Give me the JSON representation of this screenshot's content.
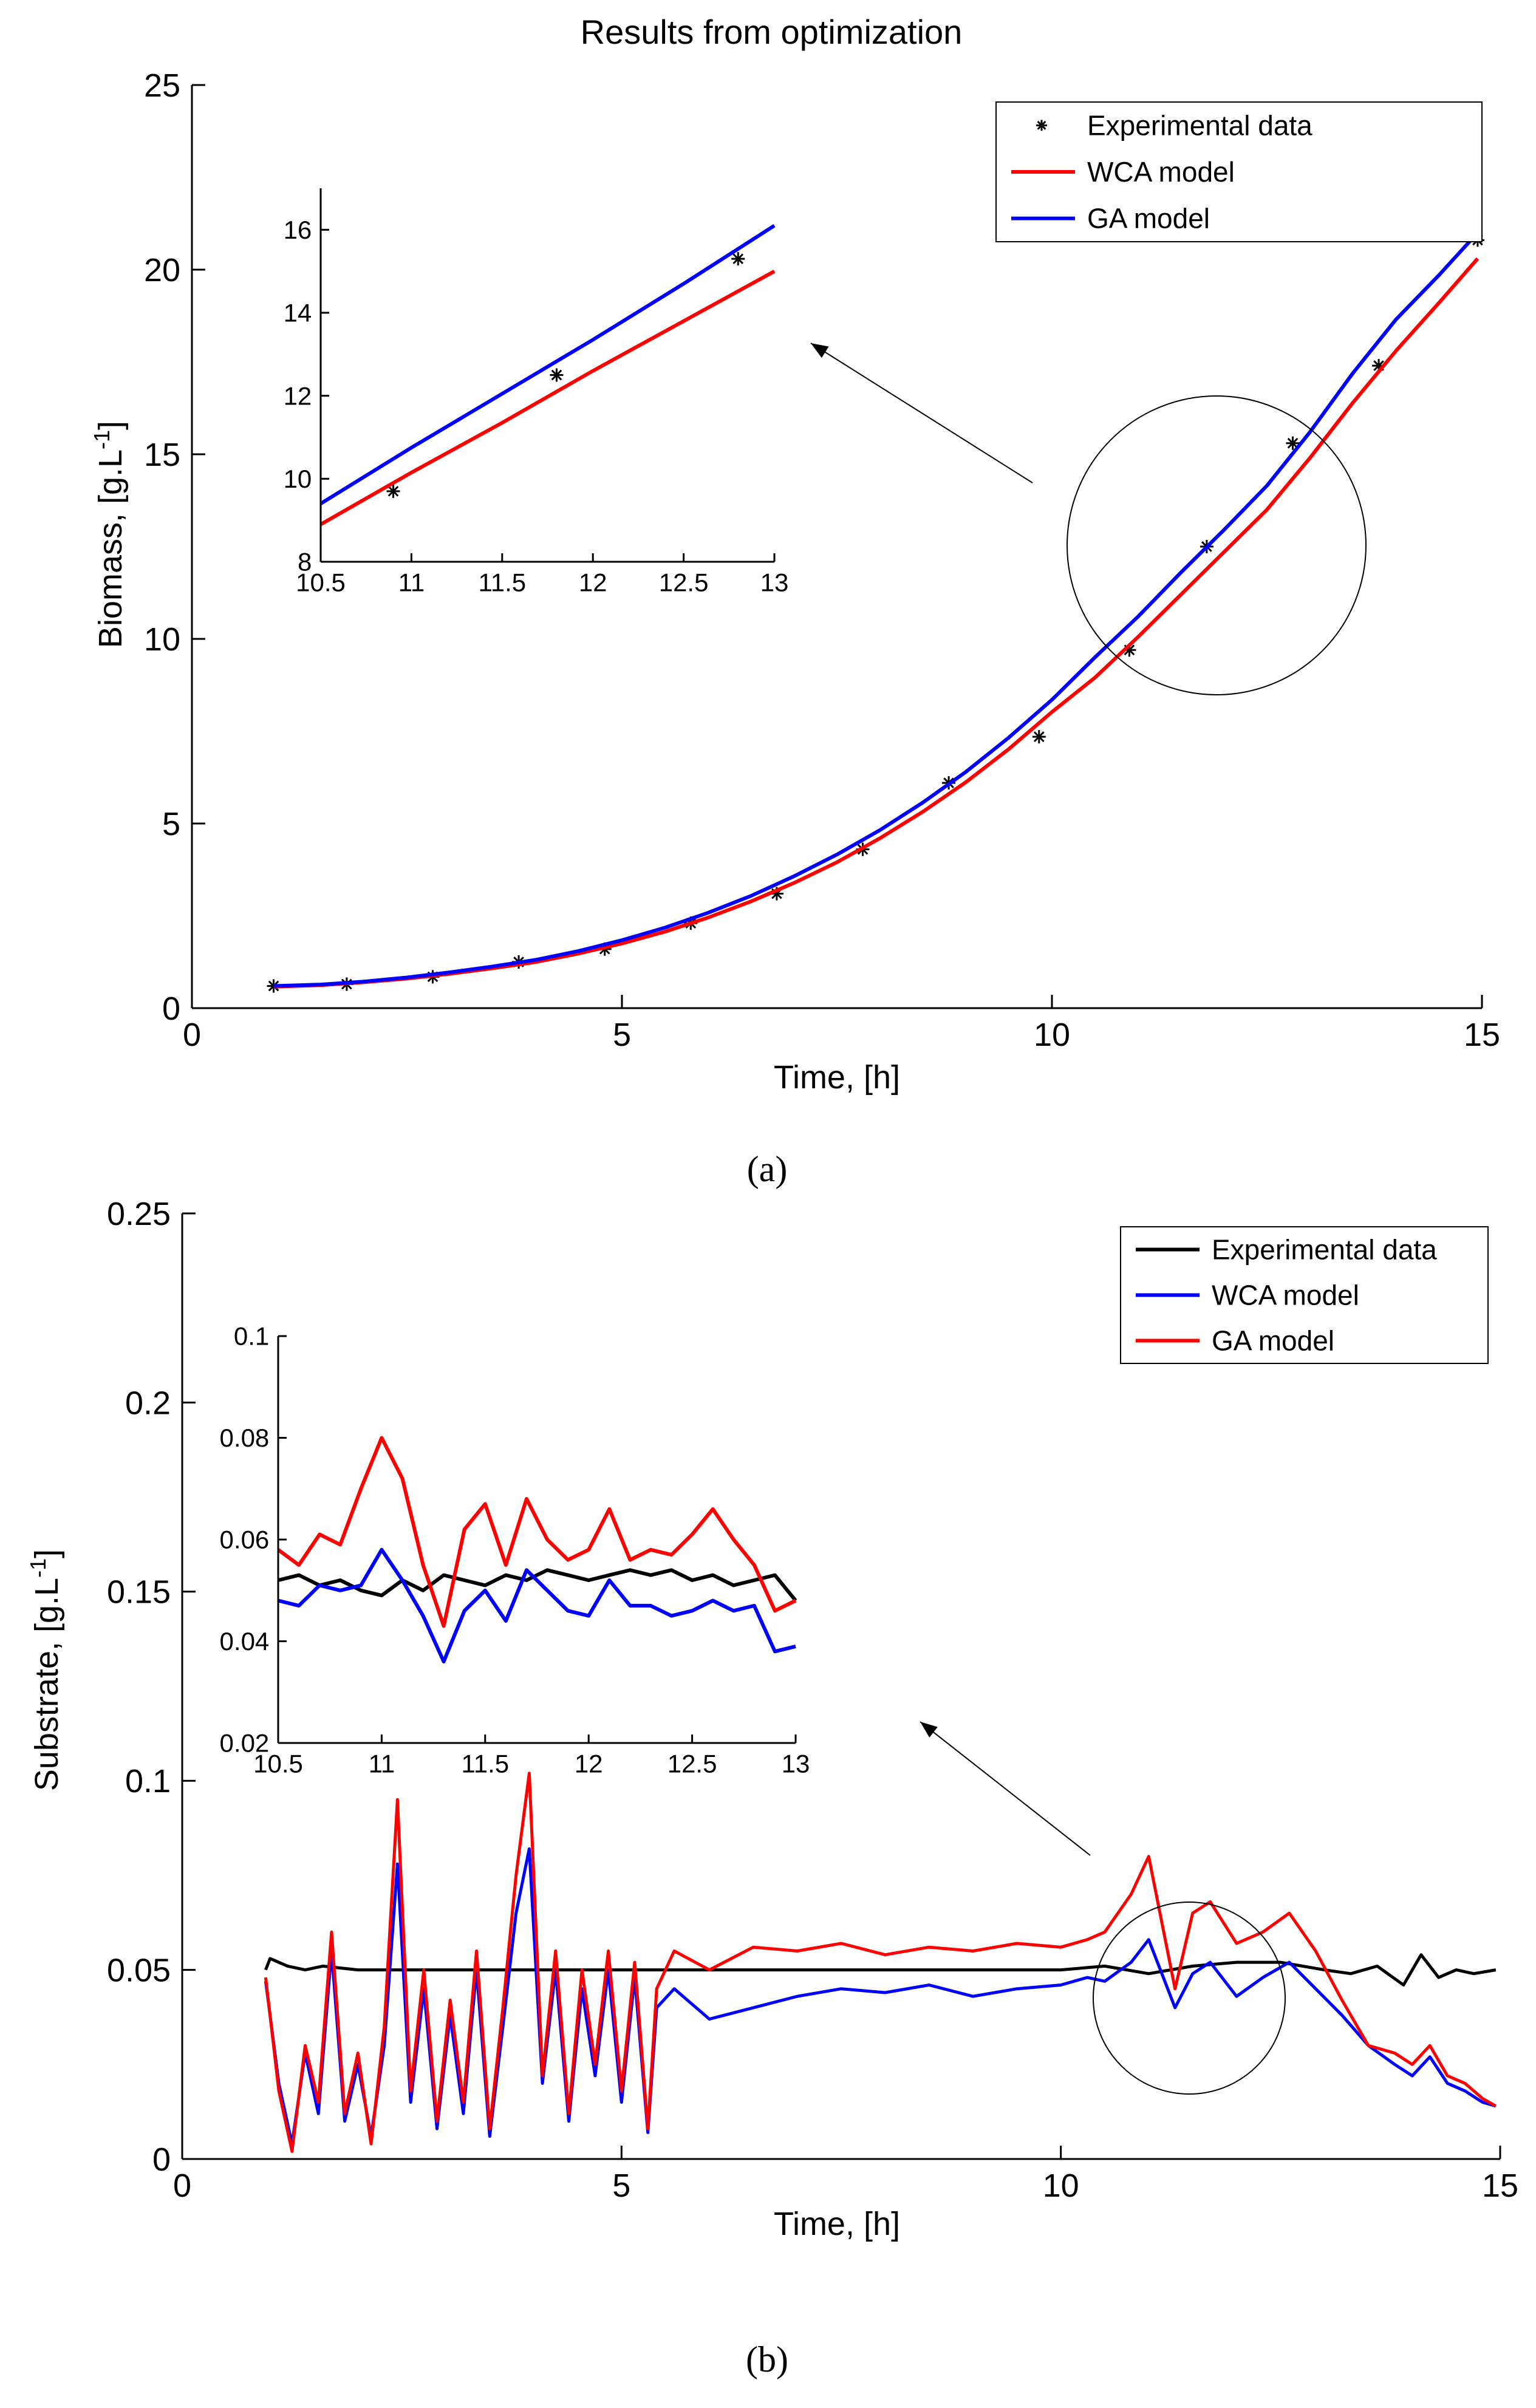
{
  "chart_data": [
    {
      "id": "a",
      "type": "line",
      "title": "Results from optimization",
      "panel_label": "(a)",
      "xlabel": "Time, [h]",
      "ylabel": "Biomass, [g.L-1]",
      "ylabel_base": "Biomass, [g.L",
      "ylabel_exp": "-1",
      "ylabel_end": "]",
      "xlim": [
        0,
        15
      ],
      "ylim": [
        0,
        25
      ],
      "xticks": [
        0,
        5,
        10,
        15
      ],
      "yticks": [
        0,
        5,
        10,
        15,
        20,
        25
      ],
      "legend": [
        "Experimental data",
        "WCA model",
        "GA model"
      ],
      "legend_position": "top-right",
      "series": [
        {
          "name": "Experimental data",
          "style": "markers",
          "color": "#000000",
          "x": [
            0.95,
            1.8,
            2.8,
            3.8,
            4.8,
            5.8,
            6.8,
            7.8,
            8.8,
            9.85,
            10.9,
            11.8,
            12.8,
            13.8,
            14.95
          ],
          "y": [
            0.6,
            0.65,
            0.85,
            1.25,
            1.6,
            2.3,
            3.1,
            4.3,
            6.1,
            7.35,
            9.7,
            12.5,
            15.3,
            17.4,
            20.8
          ]
        },
        {
          "name": "WCA model",
          "style": "line",
          "color": "#ff0000",
          "x": [
            0.95,
            1.5,
            2,
            2.5,
            3,
            3.5,
            4,
            4.5,
            5,
            5.5,
            6,
            6.5,
            7,
            7.5,
            8,
            8.5,
            9,
            9.5,
            10,
            10.5,
            11,
            11.5,
            12,
            12.5,
            13,
            13.5,
            14,
            14.5,
            14.95
          ],
          "y": [
            0.58,
            0.62,
            0.7,
            0.8,
            0.93,
            1.08,
            1.25,
            1.48,
            1.75,
            2.07,
            2.45,
            2.89,
            3.39,
            3.95,
            4.6,
            5.32,
            6.12,
            7.02,
            8.02,
            8.95,
            10.05,
            11.2,
            12.35,
            13.5,
            14.9,
            16.4,
            17.8,
            19.1,
            20.3
          ]
        },
        {
          "name": "GA model",
          "style": "line",
          "color": "#0000ff",
          "x": [
            0.95,
            1.5,
            2,
            2.5,
            3,
            3.5,
            4,
            4.5,
            5,
            5.5,
            6,
            6.5,
            7,
            7.5,
            8,
            8.5,
            9,
            9.5,
            10,
            10.5,
            11,
            11.5,
            12,
            12.5,
            13,
            13.5,
            14,
            14.5,
            14.95
          ],
          "y": [
            0.6,
            0.64,
            0.72,
            0.83,
            0.97,
            1.13,
            1.31,
            1.55,
            1.84,
            2.18,
            2.58,
            3.04,
            3.57,
            4.16,
            4.82,
            5.57,
            6.4,
            7.33,
            8.35,
            9.5,
            10.6,
            11.8,
            12.95,
            14.15,
            15.6,
            17.2,
            18.65,
            19.85,
            21.0
          ]
        }
      ],
      "annotation": "zoom circle around t = 11.5–12.5 h with arrow to inset"
    },
    {
      "id": "a_inset",
      "type": "line",
      "title": "",
      "xlim": [
        10.5,
        13
      ],
      "ylim": [
        8,
        17
      ],
      "xticks": [
        10.5,
        11,
        11.5,
        12,
        12.5,
        13
      ],
      "yticks": [
        8,
        10,
        12,
        14,
        16
      ],
      "series": [
        {
          "name": "Experimental data",
          "style": "markers",
          "color": "#000000",
          "x": [
            10.9,
            11.8,
            12.8
          ],
          "y": [
            9.7,
            12.5,
            15.3
          ]
        },
        {
          "name": "WCA model",
          "style": "line",
          "color": "#ff0000",
          "x": [
            10.5,
            11,
            11.5,
            12,
            12.5,
            13
          ],
          "y": [
            8.9,
            10.15,
            11.35,
            12.6,
            13.8,
            15.0
          ]
        },
        {
          "name": "GA model",
          "style": "line",
          "color": "#0000ff",
          "x": [
            10.5,
            11,
            11.5,
            12,
            12.5,
            13
          ],
          "y": [
            9.4,
            10.75,
            12.05,
            13.35,
            14.7,
            16.1
          ]
        }
      ]
    },
    {
      "id": "b",
      "type": "line",
      "title": "",
      "panel_label": "(b)",
      "xlabel": "Time, [h]",
      "ylabel": "Substrate, [g.L-1]",
      "ylabel_base": "Substrate, [g.L",
      "ylabel_exp": "-1",
      "ylabel_end": "]",
      "xlim": [
        0,
        15
      ],
      "ylim": [
        0,
        0.25
      ],
      "xticks": [
        0,
        5,
        10,
        15
      ],
      "yticks": [
        0,
        0.05,
        0.1,
        0.15,
        0.2,
        0.25
      ],
      "ytick_labels": [
        "0",
        "0.05",
        "0.1",
        "0.15",
        "0.2",
        "0.25"
      ],
      "legend": [
        "Experimental data",
        "WCA model",
        "GA model"
      ],
      "legend_position": "top-right",
      "series": [
        {
          "name": "Experimental data",
          "style": "line",
          "color": "#000000",
          "x": [
            0.95,
            1.0,
            1.2,
            1.4,
            1.6,
            2.0,
            3.0,
            4.0,
            5.0,
            6.0,
            7.0,
            8.0,
            9.0,
            10.0,
            10.5,
            11.0,
            11.5,
            12.0,
            12.5,
            13.0,
            13.3,
            13.6,
            13.9,
            14.1,
            14.3,
            14.5,
            14.7,
            14.95
          ],
          "y": [
            0.05,
            0.053,
            0.051,
            0.05,
            0.051,
            0.05,
            0.05,
            0.05,
            0.05,
            0.05,
            0.05,
            0.05,
            0.05,
            0.05,
            0.051,
            0.049,
            0.051,
            0.052,
            0.052,
            0.05,
            0.049,
            0.051,
            0.046,
            0.054,
            0.048,
            0.05,
            0.049,
            0.05
          ]
        },
        {
          "name": "WCA model",
          "style": "line",
          "color": "#0000ff",
          "x": [
            0.95,
            1.1,
            1.25,
            1.4,
            1.55,
            1.7,
            1.85,
            2.0,
            2.15,
            2.3,
            2.45,
            2.6,
            2.75,
            2.9,
            3.05,
            3.2,
            3.35,
            3.5,
            3.65,
            3.8,
            3.95,
            4.1,
            4.25,
            4.4,
            4.55,
            4.7,
            4.85,
            5.0,
            5.15,
            5.3,
            5.4,
            5.6,
            6.0,
            6.5,
            7.0,
            7.5,
            8.0,
            8.5,
            9.0,
            9.5,
            10.0,
            10.3,
            10.5,
            10.8,
            11.0,
            11.3,
            11.5,
            11.7,
            12.0,
            12.3,
            12.6,
            12.9,
            13.2,
            13.5,
            13.8,
            14.0,
            14.2,
            14.4,
            14.6,
            14.8,
            14.95
          ],
          "y": [
            0.047,
            0.02,
            0.004,
            0.028,
            0.012,
            0.055,
            0.01,
            0.025,
            0.006,
            0.03,
            0.078,
            0.015,
            0.045,
            0.008,
            0.038,
            0.012,
            0.05,
            0.006,
            0.035,
            0.065,
            0.082,
            0.02,
            0.05,
            0.01,
            0.045,
            0.022,
            0.05,
            0.015,
            0.048,
            0.007,
            0.04,
            0.045,
            0.037,
            0.04,
            0.043,
            0.045,
            0.044,
            0.046,
            0.043,
            0.045,
            0.046,
            0.048,
            0.047,
            0.052,
            0.058,
            0.04,
            0.049,
            0.052,
            0.043,
            0.048,
            0.052,
            0.045,
            0.038,
            0.03,
            0.025,
            0.022,
            0.027,
            0.02,
            0.018,
            0.015,
            0.014
          ]
        },
        {
          "name": "GA model",
          "style": "line",
          "color": "#ff0000",
          "x": [
            0.95,
            1.1,
            1.25,
            1.4,
            1.55,
            1.7,
            1.85,
            2.0,
            2.15,
            2.3,
            2.45,
            2.6,
            2.75,
            2.9,
            3.05,
            3.2,
            3.35,
            3.5,
            3.65,
            3.8,
            3.95,
            4.1,
            4.25,
            4.4,
            4.55,
            4.7,
            4.85,
            5.0,
            5.15,
            5.3,
            5.4,
            5.6,
            6.0,
            6.5,
            7.0,
            7.5,
            8.0,
            8.5,
            9.0,
            9.5,
            10.0,
            10.3,
            10.5,
            10.8,
            11.0,
            11.3,
            11.5,
            11.7,
            12.0,
            12.3,
            12.6,
            12.9,
            13.2,
            13.5,
            13.8,
            14.0,
            14.2,
            14.4,
            14.6,
            14.8,
            14.95
          ],
          "y": [
            0.048,
            0.018,
            0.002,
            0.03,
            0.015,
            0.06,
            0.012,
            0.028,
            0.004,
            0.035,
            0.095,
            0.018,
            0.05,
            0.01,
            0.042,
            0.015,
            0.055,
            0.008,
            0.04,
            0.075,
            0.102,
            0.022,
            0.055,
            0.012,
            0.05,
            0.025,
            0.055,
            0.018,
            0.052,
            0.008,
            0.045,
            0.055,
            0.05,
            0.056,
            0.055,
            0.057,
            0.054,
            0.056,
            0.055,
            0.057,
            0.056,
            0.058,
            0.06,
            0.07,
            0.08,
            0.045,
            0.065,
            0.068,
            0.057,
            0.06,
            0.065,
            0.055,
            0.042,
            0.03,
            0.028,
            0.025,
            0.03,
            0.022,
            0.02,
            0.016,
            0.014
          ]
        }
      ],
      "annotation": "zoom circle around t = 11.5 h with arrow to inset"
    },
    {
      "id": "b_inset",
      "type": "line",
      "title": "",
      "xlim": [
        10.5,
        13
      ],
      "ylim": [
        0.02,
        0.1
      ],
      "xticks": [
        10.5,
        11,
        11.5,
        12,
        12.5,
        13
      ],
      "yticks": [
        0.02,
        0.04,
        0.06,
        0.08,
        0.1
      ],
      "ytick_labels": [
        "0.02",
        "0.04",
        "0.06",
        "0.08",
        "0.1"
      ],
      "series": [
        {
          "name": "Experimental data",
          "style": "line",
          "color": "#000000",
          "x": [
            10.5,
            10.6,
            10.7,
            10.8,
            10.9,
            11.0,
            11.1,
            11.2,
            11.3,
            11.4,
            11.5,
            11.6,
            11.7,
            11.8,
            11.9,
            12.0,
            12.1,
            12.2,
            12.3,
            12.4,
            12.5,
            12.6,
            12.7,
            12.8,
            12.9,
            13.0
          ],
          "y": [
            0.052,
            0.053,
            0.051,
            0.052,
            0.05,
            0.049,
            0.052,
            0.05,
            0.053,
            0.052,
            0.051,
            0.053,
            0.052,
            0.054,
            0.053,
            0.052,
            0.053,
            0.054,
            0.053,
            0.054,
            0.052,
            0.053,
            0.051,
            0.052,
            0.053,
            0.048
          ]
        },
        {
          "name": "WCA model",
          "style": "line",
          "color": "#0000ff",
          "x": [
            10.5,
            10.6,
            10.7,
            10.8,
            10.9,
            11.0,
            11.1,
            11.2,
            11.3,
            11.4,
            11.5,
            11.6,
            11.7,
            11.8,
            11.9,
            12.0,
            12.1,
            12.2,
            12.3,
            12.4,
            12.5,
            12.6,
            12.7,
            12.8,
            12.9,
            13.0
          ],
          "y": [
            0.048,
            0.047,
            0.051,
            0.05,
            0.051,
            0.058,
            0.052,
            0.045,
            0.036,
            0.046,
            0.05,
            0.044,
            0.054,
            0.05,
            0.046,
            0.045,
            0.052,
            0.047,
            0.047,
            0.045,
            0.046,
            0.048,
            0.046,
            0.047,
            0.038,
            0.039
          ]
        },
        {
          "name": "GA model",
          "style": "line",
          "color": "#ff0000",
          "x": [
            10.5,
            10.6,
            10.7,
            10.8,
            10.9,
            11.0,
            11.1,
            11.2,
            11.3,
            11.4,
            11.5,
            11.6,
            11.7,
            11.8,
            11.9,
            12.0,
            12.1,
            12.2,
            12.3,
            12.4,
            12.5,
            12.6,
            12.7,
            12.8,
            12.9,
            13.0
          ],
          "y": [
            0.058,
            0.055,
            0.061,
            0.059,
            0.07,
            0.08,
            0.072,
            0.055,
            0.043,
            0.062,
            0.067,
            0.055,
            0.068,
            0.06,
            0.056,
            0.058,
            0.066,
            0.056,
            0.058,
            0.057,
            0.061,
            0.066,
            0.06,
            0.055,
            0.046,
            0.048
          ]
        }
      ]
    }
  ]
}
